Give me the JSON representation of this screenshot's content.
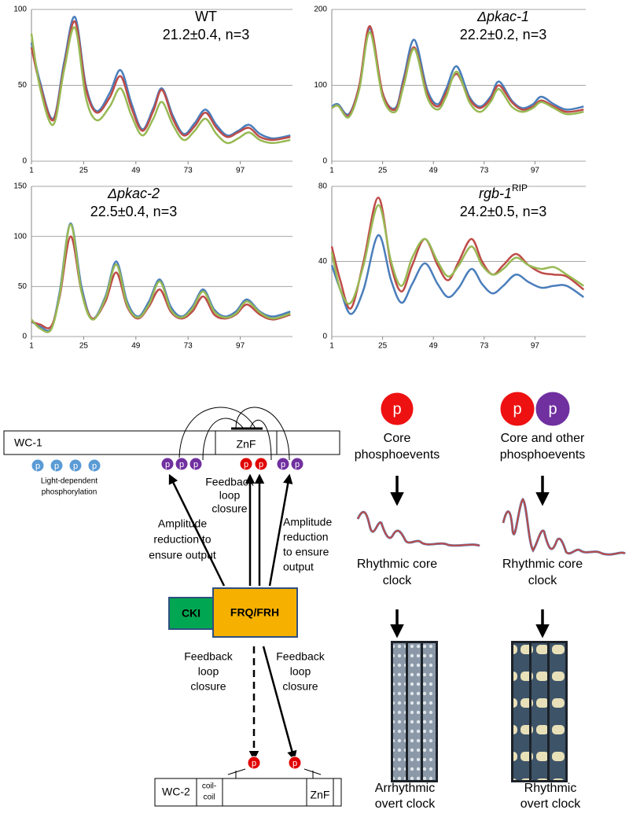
{
  "chart_data": [
    {
      "type": "line",
      "title": "WT",
      "subtitle": "21.2±0.4, n=3",
      "x": [
        1,
        5,
        11,
        16,
        21,
        26,
        31,
        37,
        42,
        47,
        52,
        57,
        61,
        66,
        71,
        76,
        81,
        86,
        91,
        96,
        101,
        106,
        112,
        120
      ],
      "xlim": [
        1,
        121
      ],
      "xticks": [
        1,
        25,
        49,
        73,
        97
      ],
      "ylim": [
        0,
        100
      ],
      "yticks": [
        0,
        50,
        100
      ],
      "grid": true,
      "series": [
        {
          "color": "#4a7ebb",
          "values": [
            78,
            52,
            28,
            65,
            95,
            50,
            33,
            45,
            60,
            38,
            21,
            35,
            48,
            30,
            18,
            25,
            34,
            24,
            17,
            20,
            24,
            18,
            15,
            17
          ]
        },
        {
          "color": "#be4b48",
          "values": [
            75,
            50,
            27,
            62,
            92,
            48,
            32,
            42,
            56,
            35,
            20,
            33,
            47,
            28,
            17,
            23,
            32,
            22,
            16,
            19,
            22,
            16,
            14,
            16
          ]
        },
        {
          "color": "#98b954",
          "values": [
            84,
            48,
            24,
            60,
            88,
            42,
            27,
            36,
            48,
            30,
            17,
            28,
            39,
            24,
            14,
            20,
            28,
            18,
            12,
            15,
            19,
            14,
            12,
            14
          ]
        }
      ]
    },
    {
      "type": "line",
      "title": "Δpkac-1",
      "subtitle": "22.2±0.2, n=3",
      "x": [
        1,
        4,
        9,
        14,
        19,
        25,
        31,
        35,
        40,
        46,
        51,
        55,
        60,
        66,
        71,
        76,
        80,
        86,
        91,
        96,
        100,
        106,
        112,
        120
      ],
      "xlim": [
        1,
        121
      ],
      "xticks": [
        1,
        25,
        49,
        73,
        97
      ],
      "ylim": [
        0,
        200
      ],
      "yticks": [
        0,
        100,
        200
      ],
      "grid": true,
      "series": [
        {
          "color": "#4a7ebb",
          "values": [
            72,
            75,
            62,
            100,
            175,
            90,
            70,
            110,
            160,
            95,
            75,
            95,
            125,
            85,
            72,
            85,
            105,
            80,
            70,
            75,
            85,
            75,
            68,
            72
          ]
        },
        {
          "color": "#be4b48",
          "values": [
            70,
            73,
            60,
            100,
            178,
            90,
            68,
            105,
            150,
            90,
            72,
            90,
            115,
            82,
            70,
            82,
            100,
            78,
            68,
            72,
            80,
            72,
            65,
            68
          ]
        },
        {
          "color": "#98b954",
          "values": [
            70,
            73,
            58,
            95,
            170,
            85,
            65,
            100,
            148,
            85,
            68,
            85,
            118,
            78,
            65,
            78,
            95,
            72,
            65,
            70,
            78,
            70,
            62,
            65
          ]
        }
      ]
    },
    {
      "type": "line",
      "title": "Δpkac-2",
      "subtitle": "22.5±0.4, n=3",
      "x": [
        1,
        5,
        10,
        14,
        19,
        24,
        29,
        35,
        40,
        45,
        50,
        55,
        60,
        65,
        70,
        75,
        80,
        85,
        90,
        95,
        100,
        106,
        112,
        120
      ],
      "xlim": [
        1,
        121
      ],
      "xticks": [
        1,
        25,
        49,
        73,
        97
      ],
      "ylim": [
        0,
        150
      ],
      "yticks": [
        0,
        50,
        100,
        150
      ],
      "grid": true,
      "series": [
        {
          "color": "#4a7ebb",
          "values": [
            15,
            10,
            8,
            45,
            113,
            50,
            18,
            40,
            75,
            35,
            20,
            35,
            57,
            30,
            20,
            30,
            47,
            27,
            20,
            25,
            37,
            25,
            20,
            25
          ]
        },
        {
          "color": "#be4b48",
          "values": [
            15,
            12,
            10,
            40,
            100,
            45,
            18,
            35,
            64,
            30,
            18,
            30,
            47,
            25,
            18,
            25,
            40,
            22,
            18,
            22,
            32,
            22,
            17,
            22
          ]
        },
        {
          "color": "#98b954",
          "values": [
            17,
            8,
            7,
            42,
            112,
            45,
            17,
            38,
            72,
            32,
            19,
            32,
            55,
            27,
            19,
            28,
            45,
            25,
            19,
            23,
            35,
            24,
            18,
            23
          ]
        }
      ]
    },
    {
      "type": "line",
      "title": "rgb-1",
      "title_superscript": "RIP",
      "subtitle": "24.2±0.5, n=3",
      "x": [
        1,
        5,
        10,
        16,
        23,
        29,
        34,
        39,
        45,
        51,
        56,
        61,
        67,
        72,
        77,
        82,
        88,
        94,
        100,
        106,
        112,
        120
      ],
      "xlim": [
        1,
        121
      ],
      "xticks": [
        1,
        25,
        49,
        73,
        97
      ],
      "ylim": [
        0,
        80
      ],
      "yticks": [
        0,
        40,
        80
      ],
      "grid": true,
      "series": [
        {
          "color": "#4a7ebb",
          "values": [
            38,
            25,
            12,
            25,
            54,
            30,
            18,
            28,
            39,
            28,
            21,
            26,
            36,
            28,
            23,
            27,
            33,
            29,
            26,
            27,
            27,
            21
          ]
        },
        {
          "color": "#be4b48",
          "values": [
            48,
            30,
            15,
            40,
            74,
            38,
            24,
            38,
            52,
            38,
            30,
            40,
            52,
            40,
            33,
            38,
            44,
            38,
            34,
            33,
            32,
            25
          ]
        },
        {
          "color": "#98b954",
          "values": [
            45,
            25,
            18,
            38,
            70,
            40,
            27,
            42,
            52,
            40,
            32,
            38,
            48,
            38,
            33,
            36,
            42,
            38,
            36,
            37,
            33,
            27
          ]
        }
      ]
    }
  ],
  "diagram": {
    "wc1": {
      "label": "WC-1",
      "znf": "ZnF"
    },
    "phospho_label": "p",
    "light_dependent": [
      "Light-dependent",
      "phosphorylation"
    ],
    "feedback_top": [
      "Feedback",
      "loop",
      "closure"
    ],
    "amplitude_left": [
      "Amplitude",
      "reduction to",
      "ensure output"
    ],
    "amplitude_right": [
      "Amplitude",
      "reduction",
      "to ensure",
      "output"
    ],
    "cki": "CKI",
    "frq": "FRQ/FRH",
    "feedback_left": [
      "Feedback",
      "loop",
      "closure"
    ],
    "feedback_right": [
      "Feedback",
      "loop",
      "closure"
    ],
    "wc2": {
      "label": "WC-2",
      "coil": [
        "coil-",
        "coil"
      ],
      "znf": "ZnF"
    },
    "left_panel": {
      "top": [
        "Core",
        "phosphoevents"
      ],
      "middle": [
        "Rhythmic core",
        "clock"
      ],
      "bottom": [
        "Arrhythmic",
        "overt clock"
      ]
    },
    "right_panel": {
      "top": [
        "Core and other",
        "phosphoevents"
      ],
      "middle": [
        "Rhythmic core",
        "clock"
      ],
      "bottom": [
        "Rhythmic",
        "overt clock"
      ]
    }
  }
}
